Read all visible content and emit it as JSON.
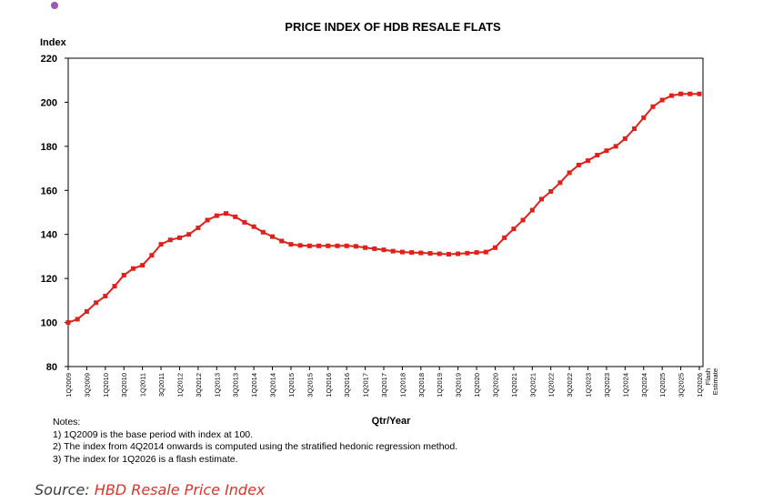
{
  "chart_data": {
    "type": "line",
    "title": "PRICE INDEX OF HDB RESALE FLATS",
    "ylabel": "Index",
    "xlabel": "Qtr/Year",
    "ylim": [
      80,
      220
    ],
    "yticks": [
      80,
      100,
      120,
      140,
      160,
      180,
      200,
      220
    ],
    "grid": false,
    "x": [
      "1Q2009",
      "2Q2009",
      "3Q2009",
      "4Q2009",
      "1Q2010",
      "2Q2010",
      "3Q2010",
      "4Q2010",
      "1Q2011",
      "2Q2011",
      "3Q2011",
      "4Q2011",
      "1Q2012",
      "2Q2012",
      "3Q2012",
      "4Q2012",
      "1Q2013",
      "2Q2013",
      "3Q2013",
      "4Q2013",
      "1Q2014",
      "2Q2014",
      "3Q2014",
      "4Q2014",
      "1Q2015",
      "2Q2015",
      "3Q2015",
      "4Q2015",
      "1Q2016",
      "2Q2016",
      "3Q2016",
      "4Q2016",
      "1Q2017",
      "2Q2017",
      "3Q2017",
      "4Q2017",
      "1Q2018",
      "2Q2018",
      "3Q2018",
      "4Q2018",
      "1Q2019",
      "2Q2019",
      "3Q2019",
      "4Q2019",
      "1Q2020",
      "2Q2020",
      "3Q2020",
      "4Q2020",
      "1Q2021",
      "2Q2021",
      "3Q2021",
      "4Q2021",
      "1Q2022",
      "2Q2022",
      "3Q2022",
      "4Q2022",
      "1Q2023",
      "2Q2023",
      "3Q2023",
      "4Q2023",
      "1Q2024",
      "2Q2024",
      "3Q2024",
      "4Q2024",
      "1Q2025",
      "2Q2025",
      "3Q2025",
      "4Q2025",
      "1Q2026"
    ],
    "tick_labels": [
      "1Q2009",
      "3Q2009",
      "1Q2010",
      "3Q2010",
      "1Q2011",
      "3Q2011",
      "1Q2012",
      "3Q2012",
      "1Q2013",
      "3Q2013",
      "1Q2014",
      "3Q2014",
      "1Q2015",
      "3Q2015",
      "1Q2016",
      "3Q2016",
      "1Q2017",
      "3Q2017",
      "1Q2018",
      "3Q2018",
      "1Q2019",
      "3Q2019",
      "1Q2020",
      "3Q2020",
      "1Q2021",
      "3Q2021",
      "1Q2022",
      "3Q2022",
      "1Q2023",
      "3Q2023",
      "1Q2024",
      "3Q2024",
      "1Q2025",
      "3Q2025",
      "1Q2026"
    ],
    "last_tick_note": "Flash Estimate",
    "series": [
      {
        "color": "#e0201a",
        "values": [
          100.0,
          101.5,
          105.0,
          109.0,
          112.0,
          116.5,
          121.5,
          124.5,
          126.0,
          130.5,
          135.5,
          137.5,
          138.5,
          140.0,
          143.0,
          146.5,
          148.5,
          149.5,
          148.0,
          145.5,
          143.5,
          141.0,
          139.0,
          137.0,
          135.5,
          135.0,
          134.8,
          134.8,
          134.8,
          134.8,
          134.8,
          134.6,
          134.0,
          133.5,
          133.0,
          132.4,
          132.0,
          131.8,
          131.6,
          131.4,
          131.2,
          131.0,
          131.2,
          131.5,
          131.8,
          132.0,
          134.0,
          138.5,
          142.5,
          146.5,
          151.0,
          156.0,
          159.5,
          163.5,
          168.0,
          171.5,
          173.5,
          176.0,
          178.0,
          180.0,
          183.5,
          188.0,
          193.0,
          198.0,
          201.0,
          203.0,
          203.8,
          203.8,
          203.8
        ]
      }
    ]
  },
  "notes": {
    "heading": "Notes:",
    "items": [
      "1) 1Q2009 is the base period with index at 100.",
      "2) The index from 4Q2014 onwards is computed using the stratified hedonic regression method.",
      "3) The index for 1Q2026 is a flash estimate."
    ]
  },
  "source": {
    "label": "Source: ",
    "link_text": "HBD Resale Price Index",
    "link_color": "#e0312b"
  },
  "decor": {
    "dot_color": "#9b59b6"
  }
}
